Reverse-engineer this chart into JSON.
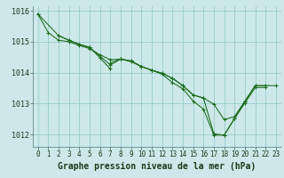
{
  "title": "Graphe pression niveau de la mer (hPa)",
  "background_color": "#cce8e8",
  "grid_color": "#99cccc",
  "line_color": "#1a6b1a",
  "marker_color": "#1a6b1a",
  "xlim": [
    -0.5,
    23.5
  ],
  "ylim": [
    1011.6,
    1016.15
  ],
  "yticks": [
    1012,
    1013,
    1014,
    1015,
    1016
  ],
  "xticks": [
    0,
    1,
    2,
    3,
    4,
    5,
    6,
    7,
    8,
    9,
    10,
    11,
    12,
    13,
    14,
    15,
    16,
    17,
    18,
    19,
    20,
    21,
    22,
    23
  ],
  "series": [
    [
      1015.9,
      1015.3,
      1015.05,
      1015.0,
      1014.88,
      1014.78,
      1014.58,
      1014.42,
      1014.44,
      1014.38,
      1014.2,
      1014.08,
      1013.98,
      1013.82,
      1013.58,
      1013.28,
      1013.18,
      1012.98,
      1012.48,
      1012.58,
      1013.08,
      1013.58,
      1013.58,
      1013.58
    ],
    [
      1015.9,
      null,
      1015.2,
      1015.05,
      1014.92,
      1014.82,
      null,
      1014.25,
      1014.44,
      1014.36,
      1014.2,
      1014.08,
      1013.95,
      1013.68,
      1013.48,
      1013.08,
      1012.82,
      1011.98,
      1011.98,
      1012.52,
      1013.02,
      1013.52,
      1013.52,
      null
    ],
    [
      null,
      null,
      1015.2,
      1015.05,
      1014.92,
      1014.82,
      1014.48,
      1014.12,
      null,
      null,
      null,
      null,
      null,
      null,
      null,
      null,
      null,
      null,
      null,
      null,
      null,
      null,
      null,
      null
    ],
    [
      null,
      null,
      null,
      null,
      null,
      null,
      null,
      1014.32,
      1014.44,
      1014.38,
      1014.2,
      1014.08,
      1013.98,
      1013.82,
      1013.58,
      1013.28,
      1013.18,
      1012.02,
      1011.98,
      1012.52,
      1013.08,
      1013.58,
      1013.58,
      null
    ]
  ],
  "xlabel_fontsize": 7,
  "ytick_fontsize": 6,
  "xtick_fontsize": 5.5
}
